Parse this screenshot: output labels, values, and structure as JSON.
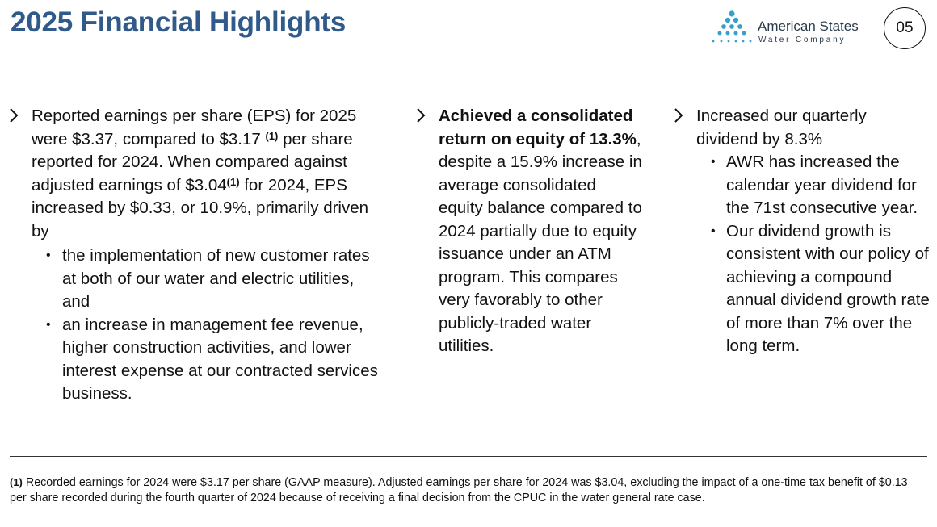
{
  "header": {
    "title": "2025 Financial Highlights",
    "logo_line1": "American States",
    "logo_line2": "Water Company",
    "page_number": "05"
  },
  "columns": [
    {
      "intro_a": "Reported earnings per share (EPS) for 2025 were $3.37, compared to $3.17",
      "sup1": "(1)",
      "intro_b": "per share reported for 2024. When compared against adjusted earnings of $3.04",
      "sup2": "(1)",
      "intro_c": "for 2024, EPS increased by $0.33, or 10.9%, primarily driven by",
      "bullets": [
        "the implementation of new customer rates at both of our water and electric utilities, and",
        "an increase in management fee revenue, higher construction activities, and lower interest expense at our contracted services business."
      ]
    },
    {
      "bold": "Achieved a consolidated return on equity of 13.3%",
      "rest": ", despite a 15.9% increase in average consolidated equity balance compared to 2024 partially due to equity issuance under an ATM program. This compares very favorably to other publicly-traded water utilities."
    },
    {
      "intro": "Increased our quarterly dividend by 8.3%",
      "bullets": [
        "AWR has increased the calendar year dividend for the 71st consecutive year.",
        "Our dividend growth is consistent with our policy of achieving a compound annual dividend growth rate of more than 7% over the long term."
      ]
    }
  ],
  "footnote": {
    "marker": "(1)",
    "text": "Recorded earnings for 2024 were $3.17 per share (GAAP measure). Adjusted earnings per share for 2024 was $3.04, excluding the impact of a one-time tax benefit of $0.13 per share recorded during the fourth quarter of 2024 because of receiving a final decision from the CPUC in the water general rate case."
  },
  "colors": {
    "title": "#2f5a8a",
    "logo_dots": "#3b9fc8"
  },
  "icons": {
    "chevron": "chevron-right-icon",
    "bullet": "bullet-dot-icon"
  }
}
